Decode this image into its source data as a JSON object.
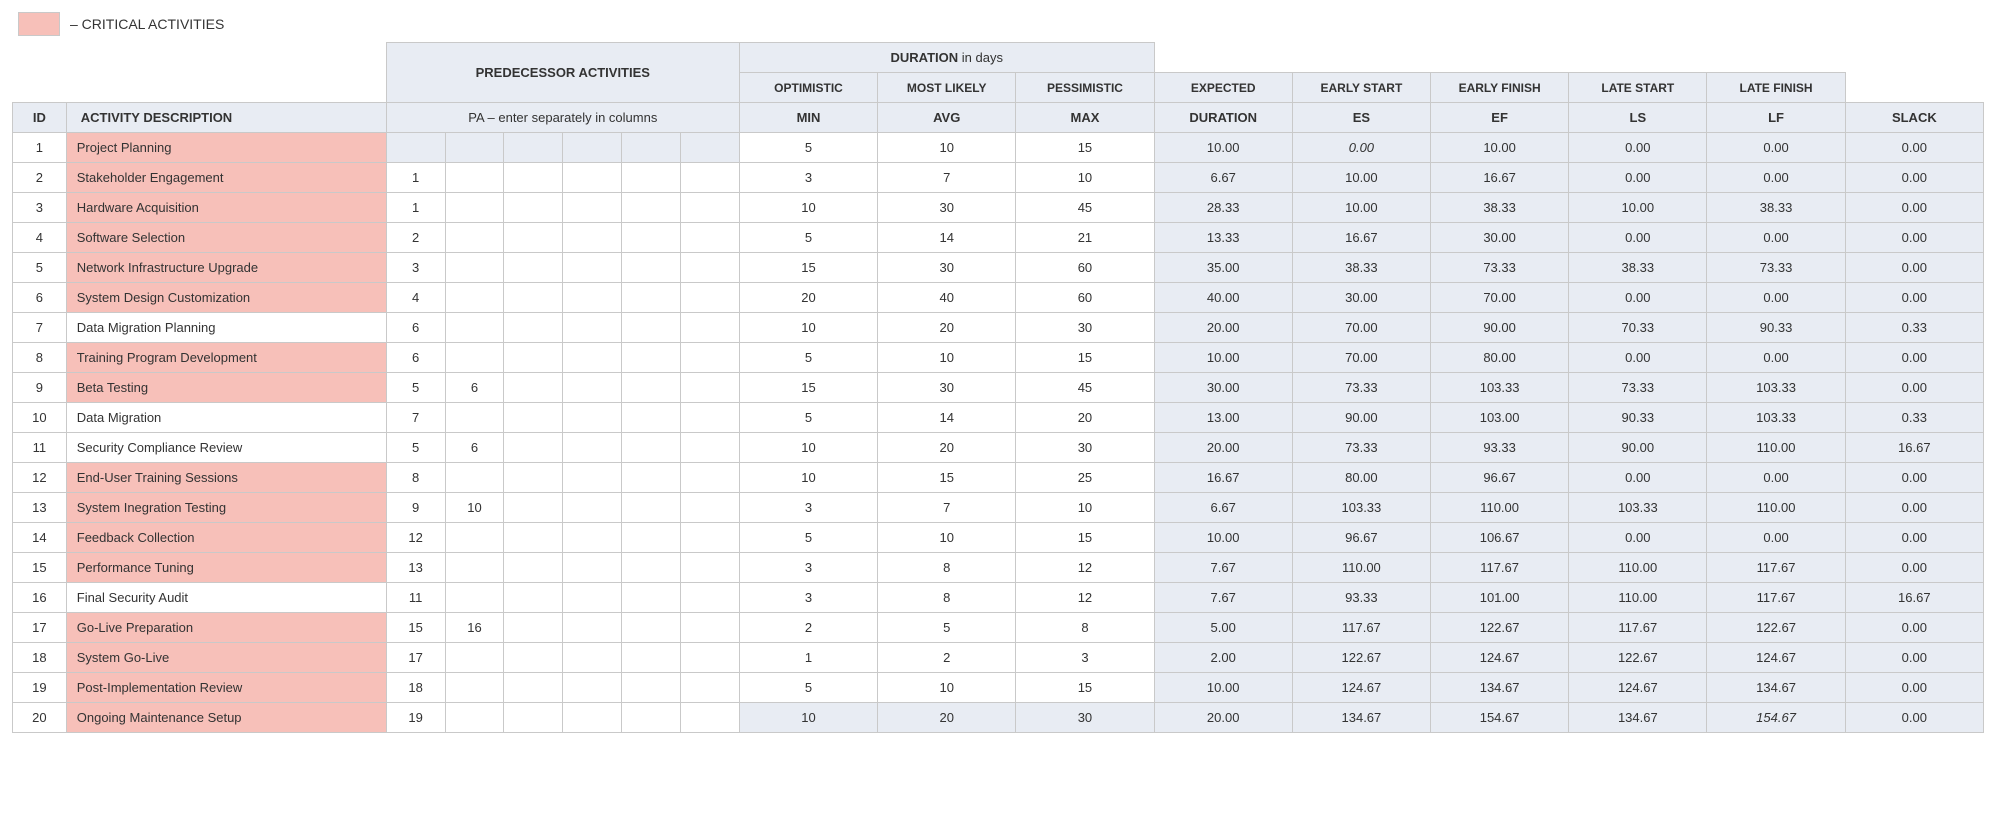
{
  "colors": {
    "critical_bg": "#f7c0b9",
    "header_bg": "#e8ecf3",
    "calc_bg": "#e8ecf3",
    "border": "#c9c9c9",
    "white": "#ffffff"
  },
  "legend": {
    "label": "– CRITICAL ACTIVITIES"
  },
  "headers": {
    "predecessor_group": "PREDECESSOR ACTIVITIES",
    "duration_group_a": "DURATION",
    "duration_group_b": " in days",
    "optimistic": "OPTIMISTIC",
    "most_likely": "MOST LIKELY",
    "pessimistic": "PESSIMISTIC",
    "expected": "EXPECTED",
    "early_start": "EARLY START",
    "early_finish": "EARLY FINISH",
    "late_start": "LATE START",
    "late_finish": "LATE FINISH",
    "id": "ID",
    "activity_description": "ACTIVITY DESCRIPTION",
    "pa_sub": "PA  –  enter separately in columns",
    "min": "MIN",
    "avg": "AVG",
    "max": "MAX",
    "duration": "DURATION",
    "es": "ES",
    "ef": "EF",
    "ls": "LS",
    "lf": "LF",
    "slack": "SLACK"
  },
  "pa_columns": 6,
  "rows": [
    {
      "id": "1",
      "desc": "Project Planning",
      "critical": true,
      "pa": [
        "",
        "",
        "",
        "",
        "",
        ""
      ],
      "min": "5",
      "avg": "10",
      "max": "15",
      "dur": "10.00",
      "es": "0.00",
      "es_italic": true,
      "ef": "10.00",
      "ls": "0.00",
      "lf": "0.00",
      "slack": "0.00",
      "pa_shaded": true
    },
    {
      "id": "2",
      "desc": "Stakeholder Engagement",
      "critical": true,
      "pa": [
        "1",
        "",
        "",
        "",
        "",
        ""
      ],
      "min": "3",
      "avg": "7",
      "max": "10",
      "dur": "6.67",
      "es": "10.00",
      "ef": "16.67",
      "ls": "0.00",
      "lf": "0.00",
      "slack": "0.00"
    },
    {
      "id": "3",
      "desc": "Hardware Acquisition",
      "critical": true,
      "pa": [
        "1",
        "",
        "",
        "",
        "",
        ""
      ],
      "min": "10",
      "avg": "30",
      "max": "45",
      "dur": "28.33",
      "es": "10.00",
      "ef": "38.33",
      "ls": "10.00",
      "lf": "38.33",
      "slack": "0.00"
    },
    {
      "id": "4",
      "desc": "Software Selection",
      "critical": true,
      "pa": [
        "2",
        "",
        "",
        "",
        "",
        ""
      ],
      "min": "5",
      "avg": "14",
      "max": "21",
      "dur": "13.33",
      "es": "16.67",
      "ef": "30.00",
      "ls": "0.00",
      "lf": "0.00",
      "slack": "0.00"
    },
    {
      "id": "5",
      "desc": "Network Infrastructure Upgrade",
      "critical": true,
      "pa": [
        "3",
        "",
        "",
        "",
        "",
        ""
      ],
      "min": "15",
      "avg": "30",
      "max": "60",
      "dur": "35.00",
      "es": "38.33",
      "ef": "73.33",
      "ls": "38.33",
      "lf": "73.33",
      "slack": "0.00"
    },
    {
      "id": "6",
      "desc": "System Design Customization",
      "critical": true,
      "pa": [
        "4",
        "",
        "",
        "",
        "",
        ""
      ],
      "min": "20",
      "avg": "40",
      "max": "60",
      "dur": "40.00",
      "es": "30.00",
      "ef": "70.00",
      "ls": "0.00",
      "lf": "0.00",
      "slack": "0.00"
    },
    {
      "id": "7",
      "desc": "Data Migration Planning",
      "critical": false,
      "pa": [
        "6",
        "",
        "",
        "",
        "",
        ""
      ],
      "min": "10",
      "avg": "20",
      "max": "30",
      "dur": "20.00",
      "es": "70.00",
      "ef": "90.00",
      "ls": "70.33",
      "lf": "90.33",
      "slack": "0.33"
    },
    {
      "id": "8",
      "desc": "Training Program Development",
      "critical": true,
      "pa": [
        "6",
        "",
        "",
        "",
        "",
        ""
      ],
      "min": "5",
      "avg": "10",
      "max": "15",
      "dur": "10.00",
      "es": "70.00",
      "ef": "80.00",
      "ls": "0.00",
      "lf": "0.00",
      "slack": "0.00"
    },
    {
      "id": "9",
      "desc": "Beta Testing",
      "critical": true,
      "pa": [
        "5",
        "6",
        "",
        "",
        "",
        ""
      ],
      "min": "15",
      "avg": "30",
      "max": "45",
      "dur": "30.00",
      "es": "73.33",
      "ef": "103.33",
      "ls": "73.33",
      "lf": "103.33",
      "slack": "0.00"
    },
    {
      "id": "10",
      "desc": "Data Migration",
      "critical": false,
      "pa": [
        "7",
        "",
        "",
        "",
        "",
        ""
      ],
      "min": "5",
      "avg": "14",
      "max": "20",
      "dur": "13.00",
      "es": "90.00",
      "ef": "103.00",
      "ls": "90.33",
      "lf": "103.33",
      "slack": "0.33"
    },
    {
      "id": "11",
      "desc": "Security Compliance Review",
      "critical": false,
      "pa": [
        "5",
        "6",
        "",
        "",
        "",
        ""
      ],
      "min": "10",
      "avg": "20",
      "max": "30",
      "dur": "20.00",
      "es": "73.33",
      "ef": "93.33",
      "ls": "90.00",
      "lf": "110.00",
      "slack": "16.67"
    },
    {
      "id": "12",
      "desc": "End-User Training Sessions",
      "critical": true,
      "pa": [
        "8",
        "",
        "",
        "",
        "",
        ""
      ],
      "min": "10",
      "avg": "15",
      "max": "25",
      "dur": "16.67",
      "es": "80.00",
      "ef": "96.67",
      "ls": "0.00",
      "lf": "0.00",
      "slack": "0.00"
    },
    {
      "id": "13",
      "desc": "System Inegration Testing",
      "critical": true,
      "pa": [
        "9",
        "10",
        "",
        "",
        "",
        ""
      ],
      "min": "3",
      "avg": "7",
      "max": "10",
      "dur": "6.67",
      "es": "103.33",
      "ef": "110.00",
      "ls": "103.33",
      "lf": "110.00",
      "slack": "0.00"
    },
    {
      "id": "14",
      "desc": "Feedback Collection",
      "critical": true,
      "pa": [
        "12",
        "",
        "",
        "",
        "",
        ""
      ],
      "min": "5",
      "avg": "10",
      "max": "15",
      "dur": "10.00",
      "es": "96.67",
      "ef": "106.67",
      "ls": "0.00",
      "lf": "0.00",
      "slack": "0.00"
    },
    {
      "id": "15",
      "desc": "Performance Tuning",
      "critical": true,
      "pa": [
        "13",
        "",
        "",
        "",
        "",
        ""
      ],
      "min": "3",
      "avg": "8",
      "max": "12",
      "dur": "7.67",
      "es": "110.00",
      "ef": "117.67",
      "ls": "110.00",
      "lf": "117.67",
      "slack": "0.00"
    },
    {
      "id": "16",
      "desc": "Final Security Audit",
      "critical": false,
      "pa": [
        "11",
        "",
        "",
        "",
        "",
        ""
      ],
      "min": "3",
      "avg": "8",
      "max": "12",
      "dur": "7.67",
      "es": "93.33",
      "ef": "101.00",
      "ls": "110.00",
      "lf": "117.67",
      "slack": "16.67"
    },
    {
      "id": "17",
      "desc": "Go-Live Preparation",
      "critical": true,
      "pa": [
        "15",
        "16",
        "",
        "",
        "",
        ""
      ],
      "min": "2",
      "avg": "5",
      "max": "8",
      "dur": "5.00",
      "es": "117.67",
      "ef": "122.67",
      "ls": "117.67",
      "lf": "122.67",
      "slack": "0.00"
    },
    {
      "id": "18",
      "desc": "System Go-Live",
      "critical": true,
      "pa": [
        "17",
        "",
        "",
        "",
        "",
        ""
      ],
      "min": "1",
      "avg": "2",
      "max": "3",
      "dur": "2.00",
      "es": "122.67",
      "ef": "124.67",
      "ls": "122.67",
      "lf": "124.67",
      "slack": "0.00"
    },
    {
      "id": "19",
      "desc": "Post-Implementation Review",
      "critical": true,
      "pa": [
        "18",
        "",
        "",
        "",
        "",
        ""
      ],
      "min": "5",
      "avg": "10",
      "max": "15",
      "dur": "10.00",
      "es": "124.67",
      "ef": "134.67",
      "ls": "124.67",
      "lf": "134.67",
      "slack": "0.00"
    },
    {
      "id": "20",
      "desc": "Ongoing Maintenance Setup",
      "critical": true,
      "pa": [
        "19",
        "",
        "",
        "",
        "",
        ""
      ],
      "min": "10",
      "avg": "20",
      "max": "30",
      "dur": "20.00",
      "es": "134.67",
      "ef": "154.67",
      "ls": "134.67",
      "lf": "154.67",
      "lf_italic": true,
      "slack": "0.00",
      "dur_row_shaded": true
    }
  ]
}
